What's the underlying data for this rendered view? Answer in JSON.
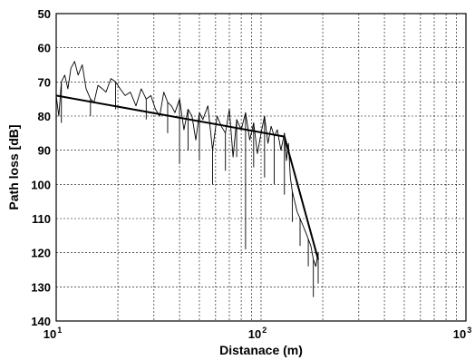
{
  "chart_data": {
    "type": "line",
    "title": "",
    "xlabel": "Distanace (m)",
    "ylabel": "Path loss [dB]",
    "x_scale": "log",
    "xlim": [
      10,
      1000
    ],
    "ylim": [
      140,
      50
    ],
    "y_inverted": true,
    "grid": true,
    "x_ticks": [
      {
        "value": 10,
        "base": "10",
        "exp": "1"
      },
      {
        "value": 100,
        "base": "10",
        "exp": "2"
      },
      {
        "value": 1000,
        "base": "10",
        "exp": "3"
      }
    ],
    "y_ticks": [
      "50",
      "60",
      "70",
      "80",
      "90",
      "100",
      "110",
      "120",
      "130",
      "140"
    ],
    "series": [
      {
        "type": "measured",
        "x": [
          10,
          10.3,
          10.6,
          11,
          11.4,
          11.8,
          12.3,
          12.8,
          13.4,
          14,
          14.7,
          15.3,
          16,
          16.8,
          17.5,
          18.5,
          19.5,
          20.5,
          21.7,
          23,
          24.5,
          26,
          27.5,
          29,
          30.5,
          32,
          33.5,
          35,
          36.5,
          38,
          40,
          42,
          44,
          46,
          48,
          50,
          52,
          55,
          58,
          61,
          64,
          67,
          70,
          73,
          76,
          80,
          84,
          88,
          92,
          96,
          100,
          104,
          108,
          112,
          116,
          120,
          125,
          130,
          133,
          136,
          139,
          142,
          146,
          150,
          155,
          160,
          165,
          170,
          175,
          180,
          185,
          190
        ],
        "y": [
          74,
          80,
          70,
          68,
          72,
          66,
          64,
          68,
          65,
          72,
          75,
          76,
          71,
          72,
          73,
          69,
          70,
          72,
          74,
          73,
          77,
          72,
          75,
          74,
          78,
          80,
          73,
          76,
          77,
          79,
          75,
          84,
          78,
          80,
          87,
          79,
          81,
          77,
          90,
          80,
          83,
          85,
          78,
          92,
          81,
          84,
          79,
          87,
          82,
          91,
          85,
          80,
          88,
          83,
          86,
          84,
          90,
          85,
          93,
          88,
          98,
          102,
          105,
          108,
          110,
          112,
          114,
          116,
          118,
          122,
          124,
          120
        ],
        "dips": [
          {
            "x": 10.6,
            "y": 82
          },
          {
            "x": 14.7,
            "y": 80
          },
          {
            "x": 19.5,
            "y": 78
          },
          {
            "x": 27.5,
            "y": 81
          },
          {
            "x": 35,
            "y": 85
          },
          {
            "x": 40,
            "y": 94
          },
          {
            "x": 44,
            "y": 90
          },
          {
            "x": 50,
            "y": 93
          },
          {
            "x": 58,
            "y": 100
          },
          {
            "x": 67,
            "y": 96
          },
          {
            "x": 76,
            "y": 92
          },
          {
            "x": 84,
            "y": 119
          },
          {
            "x": 92,
            "y": 95
          },
          {
            "x": 104,
            "y": 98
          },
          {
            "x": 116,
            "y": 100
          },
          {
            "x": 130,
            "y": 103
          },
          {
            "x": 142,
            "y": 111
          },
          {
            "x": 155,
            "y": 118
          },
          {
            "x": 170,
            "y": 124
          },
          {
            "x": 180,
            "y": 133
          },
          {
            "x": 190,
            "y": 129
          }
        ]
      },
      {
        "type": "fit",
        "x": [
          10,
          130,
          190
        ],
        "y": [
          74,
          86,
          122
        ]
      }
    ]
  }
}
